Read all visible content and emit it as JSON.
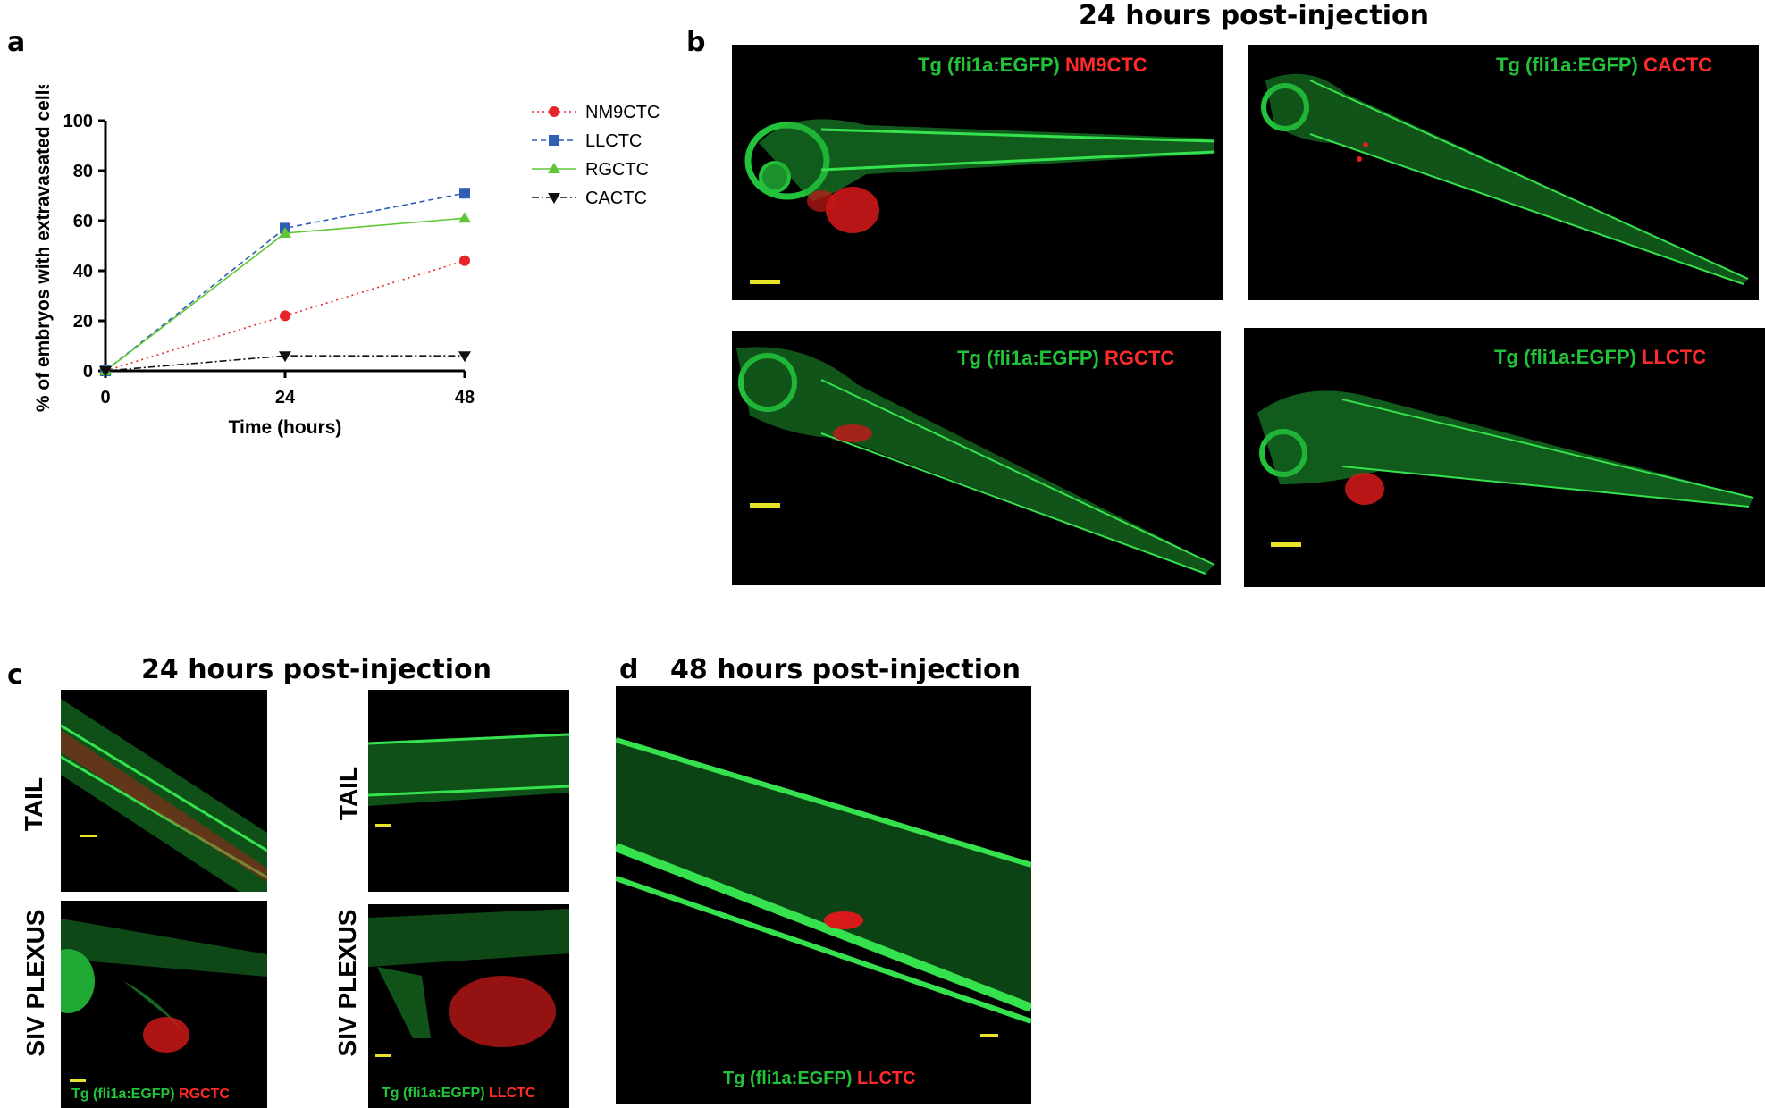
{
  "labels": {
    "a": "a",
    "b": "b",
    "c": "c",
    "d": "d"
  },
  "headings": {
    "b": "24 hours post-injection",
    "c": "24 hours post-injection",
    "d": "48 hours post-injection"
  },
  "colors": {
    "green": "#22c33a",
    "red": "#ff2a2a",
    "scalebar": "#e8e22a"
  },
  "panel_b": [
    {
      "prefix": "Tg (fli1a:EGFP)",
      "cell": "NM9CTC"
    },
    {
      "prefix": "Tg (fli1a:EGFP)",
      "cell": "CACTC"
    },
    {
      "prefix": "Tg (fli1a:EGFP)",
      "cell": "RGCTC"
    },
    {
      "prefix": "Tg (fli1a:EGFP)",
      "cell": "LLCTC"
    }
  ],
  "panel_c": {
    "row_labels": [
      "TAIL",
      "SIV PLEXUS",
      "TAIL",
      "SIV PLEXUS"
    ],
    "captions": [
      {
        "prefix": "Tg (fli1a:EGFP)",
        "cell": "RGCTC"
      },
      {
        "prefix": "Tg (fli1a:EGFP)",
        "cell": "LLCTC"
      }
    ]
  },
  "panel_d": {
    "prefix": "Tg (fli1a:EGFP)",
    "cell": "LLCTC"
  },
  "chart_data": {
    "type": "line",
    "title": "",
    "xlabel": "Time (hours)",
    "ylabel": "% of embryos with extravasated cells",
    "x": [
      0,
      24,
      48
    ],
    "xticks": [
      "0",
      "24",
      "48"
    ],
    "yticks": [
      "0",
      "20",
      "40",
      "60",
      "80",
      "100"
    ],
    "ylim": [
      0,
      100
    ],
    "grid": false,
    "legend": "right",
    "series": [
      {
        "name": "NM9CTC",
        "values": [
          0,
          22,
          44
        ],
        "color": "#e8262a",
        "marker": "circle",
        "dash": "dotted"
      },
      {
        "name": "LLCTC",
        "values": [
          0,
          57,
          71
        ],
        "color": "#2e5fb5",
        "marker": "square",
        "dash": "dashed"
      },
      {
        "name": "RGCTC",
        "values": [
          0,
          55,
          61
        ],
        "color": "#5fc635",
        "marker": "triangle-up",
        "dash": "solid"
      },
      {
        "name": "CACTC",
        "values": [
          0,
          6,
          6
        ],
        "color": "#111111",
        "marker": "triangle-down",
        "dash": "dashdot"
      }
    ]
  }
}
